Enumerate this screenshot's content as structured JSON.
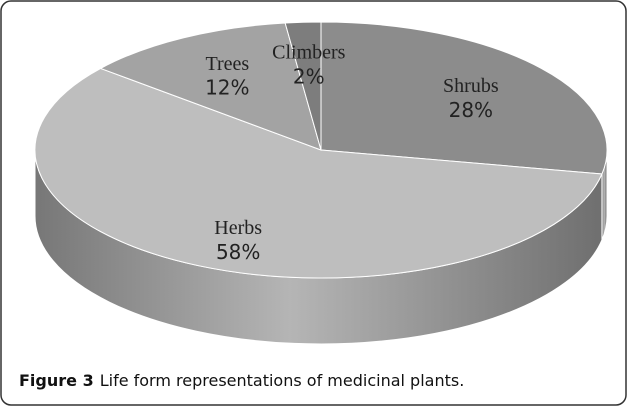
{
  "chart_data": {
    "type": "pie3d",
    "categories": [
      "Shrubs",
      "Herbs",
      "Trees",
      "Climbers"
    ],
    "values": [
      28,
      58,
      12,
      2
    ],
    "value_labels": [
      "28%",
      "58%",
      "12%",
      "2%"
    ],
    "colors": [
      "#8c8c8c",
      "#bebebe",
      "#a3a3a3",
      "#7d7d7d"
    ]
  },
  "caption": {
    "label": "Figure 3",
    "text": "Life form representations of medicinal plants."
  }
}
